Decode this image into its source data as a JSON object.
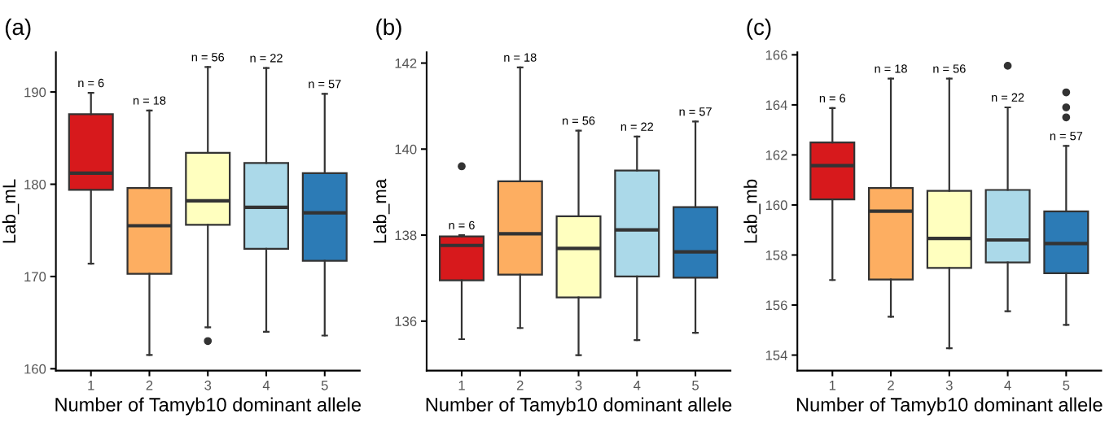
{
  "chart_data": [
    {
      "type": "box",
      "title": "(a)",
      "xlabel": "Number of Tamyb10 dominant allele",
      "ylabel": "Lab_mL",
      "categories": [
        "1",
        "2",
        "3",
        "4",
        "5"
      ],
      "colors": [
        "#d7191c",
        "#fdae61",
        "#ffffbf",
        "#abd9e9",
        "#2c7bb6"
      ],
      "ylim": [
        159.8,
        194.3
      ],
      "yticks": [
        160,
        170,
        180,
        190
      ],
      "grid": false,
      "boxes": [
        {
          "low": 171.4,
          "q1": 179.4,
          "median": 181.2,
          "q3": 187.6,
          "high": 189.9
        },
        {
          "low": 161.5,
          "q1": 170.3,
          "median": 175.5,
          "q3": 179.6,
          "high": 188.0
        },
        {
          "low": 164.5,
          "q1": 175.6,
          "median": 178.2,
          "q3": 183.4,
          "high": 192.7,
          "outliers": [
            163.0
          ]
        },
        {
          "low": 164.0,
          "q1": 173.0,
          "median": 177.5,
          "q3": 182.3,
          "high": 192.6
        },
        {
          "low": 163.6,
          "q1": 171.7,
          "median": 176.9,
          "q3": 181.2,
          "high": 189.8
        }
      ],
      "annotations": [
        {
          "text": "n = 6",
          "x": "1",
          "y": 189.9
        },
        {
          "text": "n = 18",
          "x": "2",
          "y": 188.0
        },
        {
          "text": "n = 56",
          "x": "3",
          "y": 192.7
        },
        {
          "text": "n = 22",
          "x": "4",
          "y": 192.6
        },
        {
          "text": "n = 57",
          "x": "5",
          "y": 189.8
        }
      ]
    },
    {
      "type": "box",
      "title": "(b)",
      "xlabel": "Number of Tamyb10 dominant allele",
      "ylabel": "Lab_ma",
      "categories": [
        "1",
        "2",
        "3",
        "4",
        "5"
      ],
      "colors": [
        "#d7191c",
        "#fdae61",
        "#ffffbf",
        "#abd9e9",
        "#2c7bb6"
      ],
      "ylim": [
        134.85,
        142.25
      ],
      "yticks": [
        136,
        138,
        140,
        142
      ],
      "grid": false,
      "boxes": [
        {
          "low": 135.58,
          "q1": 136.95,
          "median": 137.76,
          "q3": 137.97,
          "high": 138.0,
          "outliers": [
            139.6
          ]
        },
        {
          "low": 135.84,
          "q1": 137.08,
          "median": 138.03,
          "q3": 139.25,
          "high": 141.9
        },
        {
          "low": 135.21,
          "q1": 136.55,
          "median": 137.69,
          "q3": 138.44,
          "high": 140.43
        },
        {
          "low": 135.56,
          "q1": 137.04,
          "median": 138.12,
          "q3": 139.5,
          "high": 140.29
        },
        {
          "low": 135.73,
          "q1": 137.01,
          "median": 137.61,
          "q3": 138.65,
          "high": 140.64
        }
      ],
      "annotations": [
        {
          "text": "n = 6",
          "x": "1",
          "y": 138.0
        },
        {
          "text": "n = 18",
          "x": "2",
          "y": 141.9
        },
        {
          "text": "n = 56",
          "x": "3",
          "y": 140.43
        },
        {
          "text": "n = 22",
          "x": "4",
          "y": 140.29
        },
        {
          "text": "n = 57",
          "x": "5",
          "y": 140.64
        }
      ]
    },
    {
      "type": "box",
      "title": "(c)",
      "xlabel": "Number of Tamyb10 dominant allele",
      "ylabel": "Lab_mb",
      "categories": [
        "1",
        "2",
        "3",
        "4",
        "5"
      ],
      "colors": [
        "#d7191c",
        "#fdae61",
        "#ffffbf",
        "#abd9e9",
        "#2c7bb6"
      ],
      "ylim": [
        153.38,
        166.1
      ],
      "yticks": [
        154,
        156,
        158,
        160,
        162,
        164,
        166
      ],
      "grid": false,
      "boxes": [
        {
          "low": 157.0,
          "q1": 160.22,
          "median": 161.57,
          "q3": 162.5,
          "high": 163.87
        },
        {
          "low": 155.53,
          "q1": 157.02,
          "median": 159.75,
          "q3": 160.68,
          "high": 165.05
        },
        {
          "low": 154.27,
          "q1": 157.48,
          "median": 158.66,
          "q3": 160.56,
          "high": 165.05
        },
        {
          "low": 155.75,
          "q1": 157.7,
          "median": 158.6,
          "q3": 160.6,
          "high": 163.9,
          "outliers": [
            165.56
          ]
        },
        {
          "low": 155.21,
          "q1": 157.27,
          "median": 158.46,
          "q3": 159.74,
          "high": 162.36,
          "outliers": [
            164.5,
            163.9,
            163.5
          ]
        }
      ],
      "annotations": [
        {
          "text": "n = 6",
          "x": "1",
          "y": 163.87
        },
        {
          "text": "n = 18",
          "x": "2",
          "y": 165.05
        },
        {
          "text": "n = 56",
          "x": "3",
          "y": 165.05
        },
        {
          "text": "n = 22",
          "x": "4",
          "y": 163.9
        },
        {
          "text": "n = 57",
          "x": "5",
          "y": 162.36
        }
      ]
    }
  ]
}
